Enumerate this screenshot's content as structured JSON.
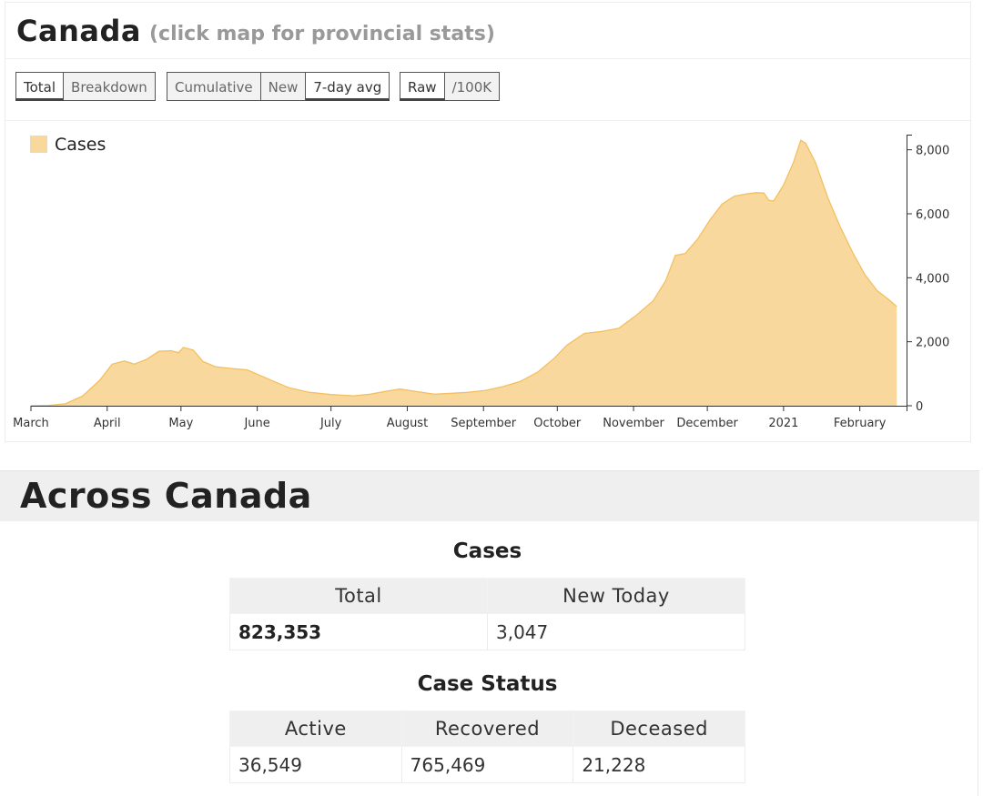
{
  "header": {
    "title": "Canada",
    "subtitle": "(click map for provincial stats)"
  },
  "toolbar": {
    "groups": [
      [
        {
          "label": "Total",
          "active": true
        },
        {
          "label": "Breakdown",
          "active": false
        }
      ],
      [
        {
          "label": "Cumulative",
          "active": false
        },
        {
          "label": "New",
          "active": false
        },
        {
          "label": "7-day avg",
          "active": true
        }
      ],
      [
        {
          "label": "Raw",
          "active": true
        },
        {
          "label": "/100K",
          "active": false
        }
      ]
    ]
  },
  "colors": {
    "fill": "#f9d89d",
    "stroke": "#f2c060",
    "axis": "#333333"
  },
  "chart_data": {
    "type": "area",
    "legend": "Cases",
    "legend_position": "top-left",
    "y_axis_side": "right",
    "ylim": [
      0,
      8900
    ],
    "yticks": [
      0,
      2000,
      4000,
      6000,
      8000
    ],
    "ytick_labels": [
      "0",
      "2,000",
      "4,000",
      "6,000",
      "8,000"
    ],
    "xlim": [
      "2020-03-01",
      "2021-02-20"
    ],
    "xticks": [
      {
        "date": "2020-03-01",
        "label": "March"
      },
      {
        "date": "2020-04-01",
        "label": "April"
      },
      {
        "date": "2020-05-01",
        "label": "May"
      },
      {
        "date": "2020-06-01",
        "label": "June"
      },
      {
        "date": "2020-07-01",
        "label": "July"
      },
      {
        "date": "2020-08-01",
        "label": "August"
      },
      {
        "date": "2020-09-01",
        "label": "September"
      },
      {
        "date": "2020-10-01",
        "label": "October"
      },
      {
        "date": "2020-11-01",
        "label": "November"
      },
      {
        "date": "2020-12-01",
        "label": "December"
      },
      {
        "date": "2021-01-01",
        "label": "2021"
      },
      {
        "date": "2021-02-01",
        "label": "February"
      }
    ],
    "series": [
      {
        "name": "Cases",
        "points": [
          [
            "2020-03-01",
            0
          ],
          [
            "2020-03-08",
            10
          ],
          [
            "2020-03-15",
            60
          ],
          [
            "2020-03-22",
            300
          ],
          [
            "2020-03-29",
            800
          ],
          [
            "2020-04-03",
            1300
          ],
          [
            "2020-04-08",
            1400
          ],
          [
            "2020-04-12",
            1300
          ],
          [
            "2020-04-17",
            1450
          ],
          [
            "2020-04-22",
            1700
          ],
          [
            "2020-04-27",
            1720
          ],
          [
            "2020-04-30",
            1660
          ],
          [
            "2020-05-02",
            1820
          ],
          [
            "2020-05-06",
            1740
          ],
          [
            "2020-05-10",
            1380
          ],
          [
            "2020-05-15",
            1220
          ],
          [
            "2020-05-22",
            1160
          ],
          [
            "2020-05-28",
            1120
          ],
          [
            "2020-06-06",
            820
          ],
          [
            "2020-06-14",
            560
          ],
          [
            "2020-06-22",
            420
          ],
          [
            "2020-07-01",
            350
          ],
          [
            "2020-07-10",
            310
          ],
          [
            "2020-07-17",
            360
          ],
          [
            "2020-07-24",
            460
          ],
          [
            "2020-07-29",
            520
          ],
          [
            "2020-08-05",
            440
          ],
          [
            "2020-08-12",
            360
          ],
          [
            "2020-08-19",
            390
          ],
          [
            "2020-08-26",
            420
          ],
          [
            "2020-09-02",
            480
          ],
          [
            "2020-09-09",
            600
          ],
          [
            "2020-09-16",
            760
          ],
          [
            "2020-09-23",
            1050
          ],
          [
            "2020-09-30",
            1500
          ],
          [
            "2020-10-05",
            1900
          ],
          [
            "2020-10-12",
            2260
          ],
          [
            "2020-10-19",
            2320
          ],
          [
            "2020-10-26",
            2420
          ],
          [
            "2020-11-02",
            2820
          ],
          [
            "2020-11-09",
            3280
          ],
          [
            "2020-11-14",
            3900
          ],
          [
            "2020-11-18",
            4700
          ],
          [
            "2020-11-22",
            4760
          ],
          [
            "2020-11-27",
            5200
          ],
          [
            "2020-12-02",
            5800
          ],
          [
            "2020-12-07",
            6300
          ],
          [
            "2020-12-12",
            6550
          ],
          [
            "2020-12-17",
            6620
          ],
          [
            "2020-12-21",
            6660
          ],
          [
            "2020-12-24",
            6650
          ],
          [
            "2020-12-26",
            6420
          ],
          [
            "2020-12-28",
            6400
          ],
          [
            "2021-01-01",
            6900
          ],
          [
            "2021-01-05",
            7600
          ],
          [
            "2021-01-08",
            8300
          ],
          [
            "2021-01-10",
            8200
          ],
          [
            "2021-01-14",
            7600
          ],
          [
            "2021-01-19",
            6500
          ],
          [
            "2021-01-24",
            5600
          ],
          [
            "2021-01-29",
            4800
          ],
          [
            "2021-02-03",
            4100
          ],
          [
            "2021-02-08",
            3600
          ],
          [
            "2021-02-13",
            3300
          ],
          [
            "2021-02-16",
            3100
          ]
        ]
      }
    ]
  },
  "summary": {
    "heading": "Across Canada",
    "cases_title": "Cases",
    "cases_headers": [
      "Total",
      "New Today"
    ],
    "cases_values": [
      "823,353",
      "3,047"
    ],
    "status_title": "Case Status",
    "status_headers": [
      "Active",
      "Recovered",
      "Deceased"
    ],
    "status_values": [
      "36,549",
      "765,469",
      "21,228"
    ]
  }
}
